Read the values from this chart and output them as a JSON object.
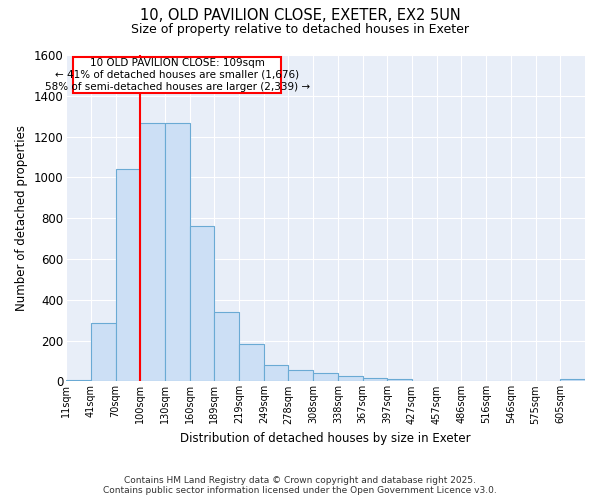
{
  "title_line1": "10, OLD PAVILION CLOSE, EXETER, EX2 5UN",
  "title_line2": "Size of property relative to detached houses in Exeter",
  "xlabel": "Distribution of detached houses by size in Exeter",
  "ylabel": "Number of detached properties",
  "bin_labels": [
    "11sqm",
    "41sqm",
    "70sqm",
    "100sqm",
    "130sqm",
    "160sqm",
    "189sqm",
    "219sqm",
    "249sqm",
    "278sqm",
    "308sqm",
    "338sqm",
    "367sqm",
    "397sqm",
    "427sqm",
    "457sqm",
    "486sqm",
    "516sqm",
    "546sqm",
    "575sqm",
    "605sqm"
  ],
  "bar_values": [
    8,
    285,
    1040,
    1265,
    1265,
    760,
    340,
    185,
    80,
    55,
    40,
    28,
    18,
    10,
    0,
    0,
    0,
    0,
    0,
    0,
    12
  ],
  "bar_color": "#ccdff5",
  "bar_edge_color": "#6aaad4",
  "red_line_bin": 3,
  "red_line_label": "10 OLD PAVILION CLOSE: 109sqm",
  "annotation_line2": "← 41% of detached houses are smaller (1,676)",
  "annotation_line3": "58% of semi-detached houses are larger (2,339) →",
  "ylim": [
    0,
    1600
  ],
  "yticks": [
    0,
    200,
    400,
    600,
    800,
    1000,
    1200,
    1400,
    1600
  ],
  "background_color": "#e8eef8",
  "grid_color": "#ffffff",
  "footnote_line1": "Contains HM Land Registry data © Crown copyright and database right 2025.",
  "footnote_line2": "Contains public sector information licensed under the Open Government Licence v3.0."
}
